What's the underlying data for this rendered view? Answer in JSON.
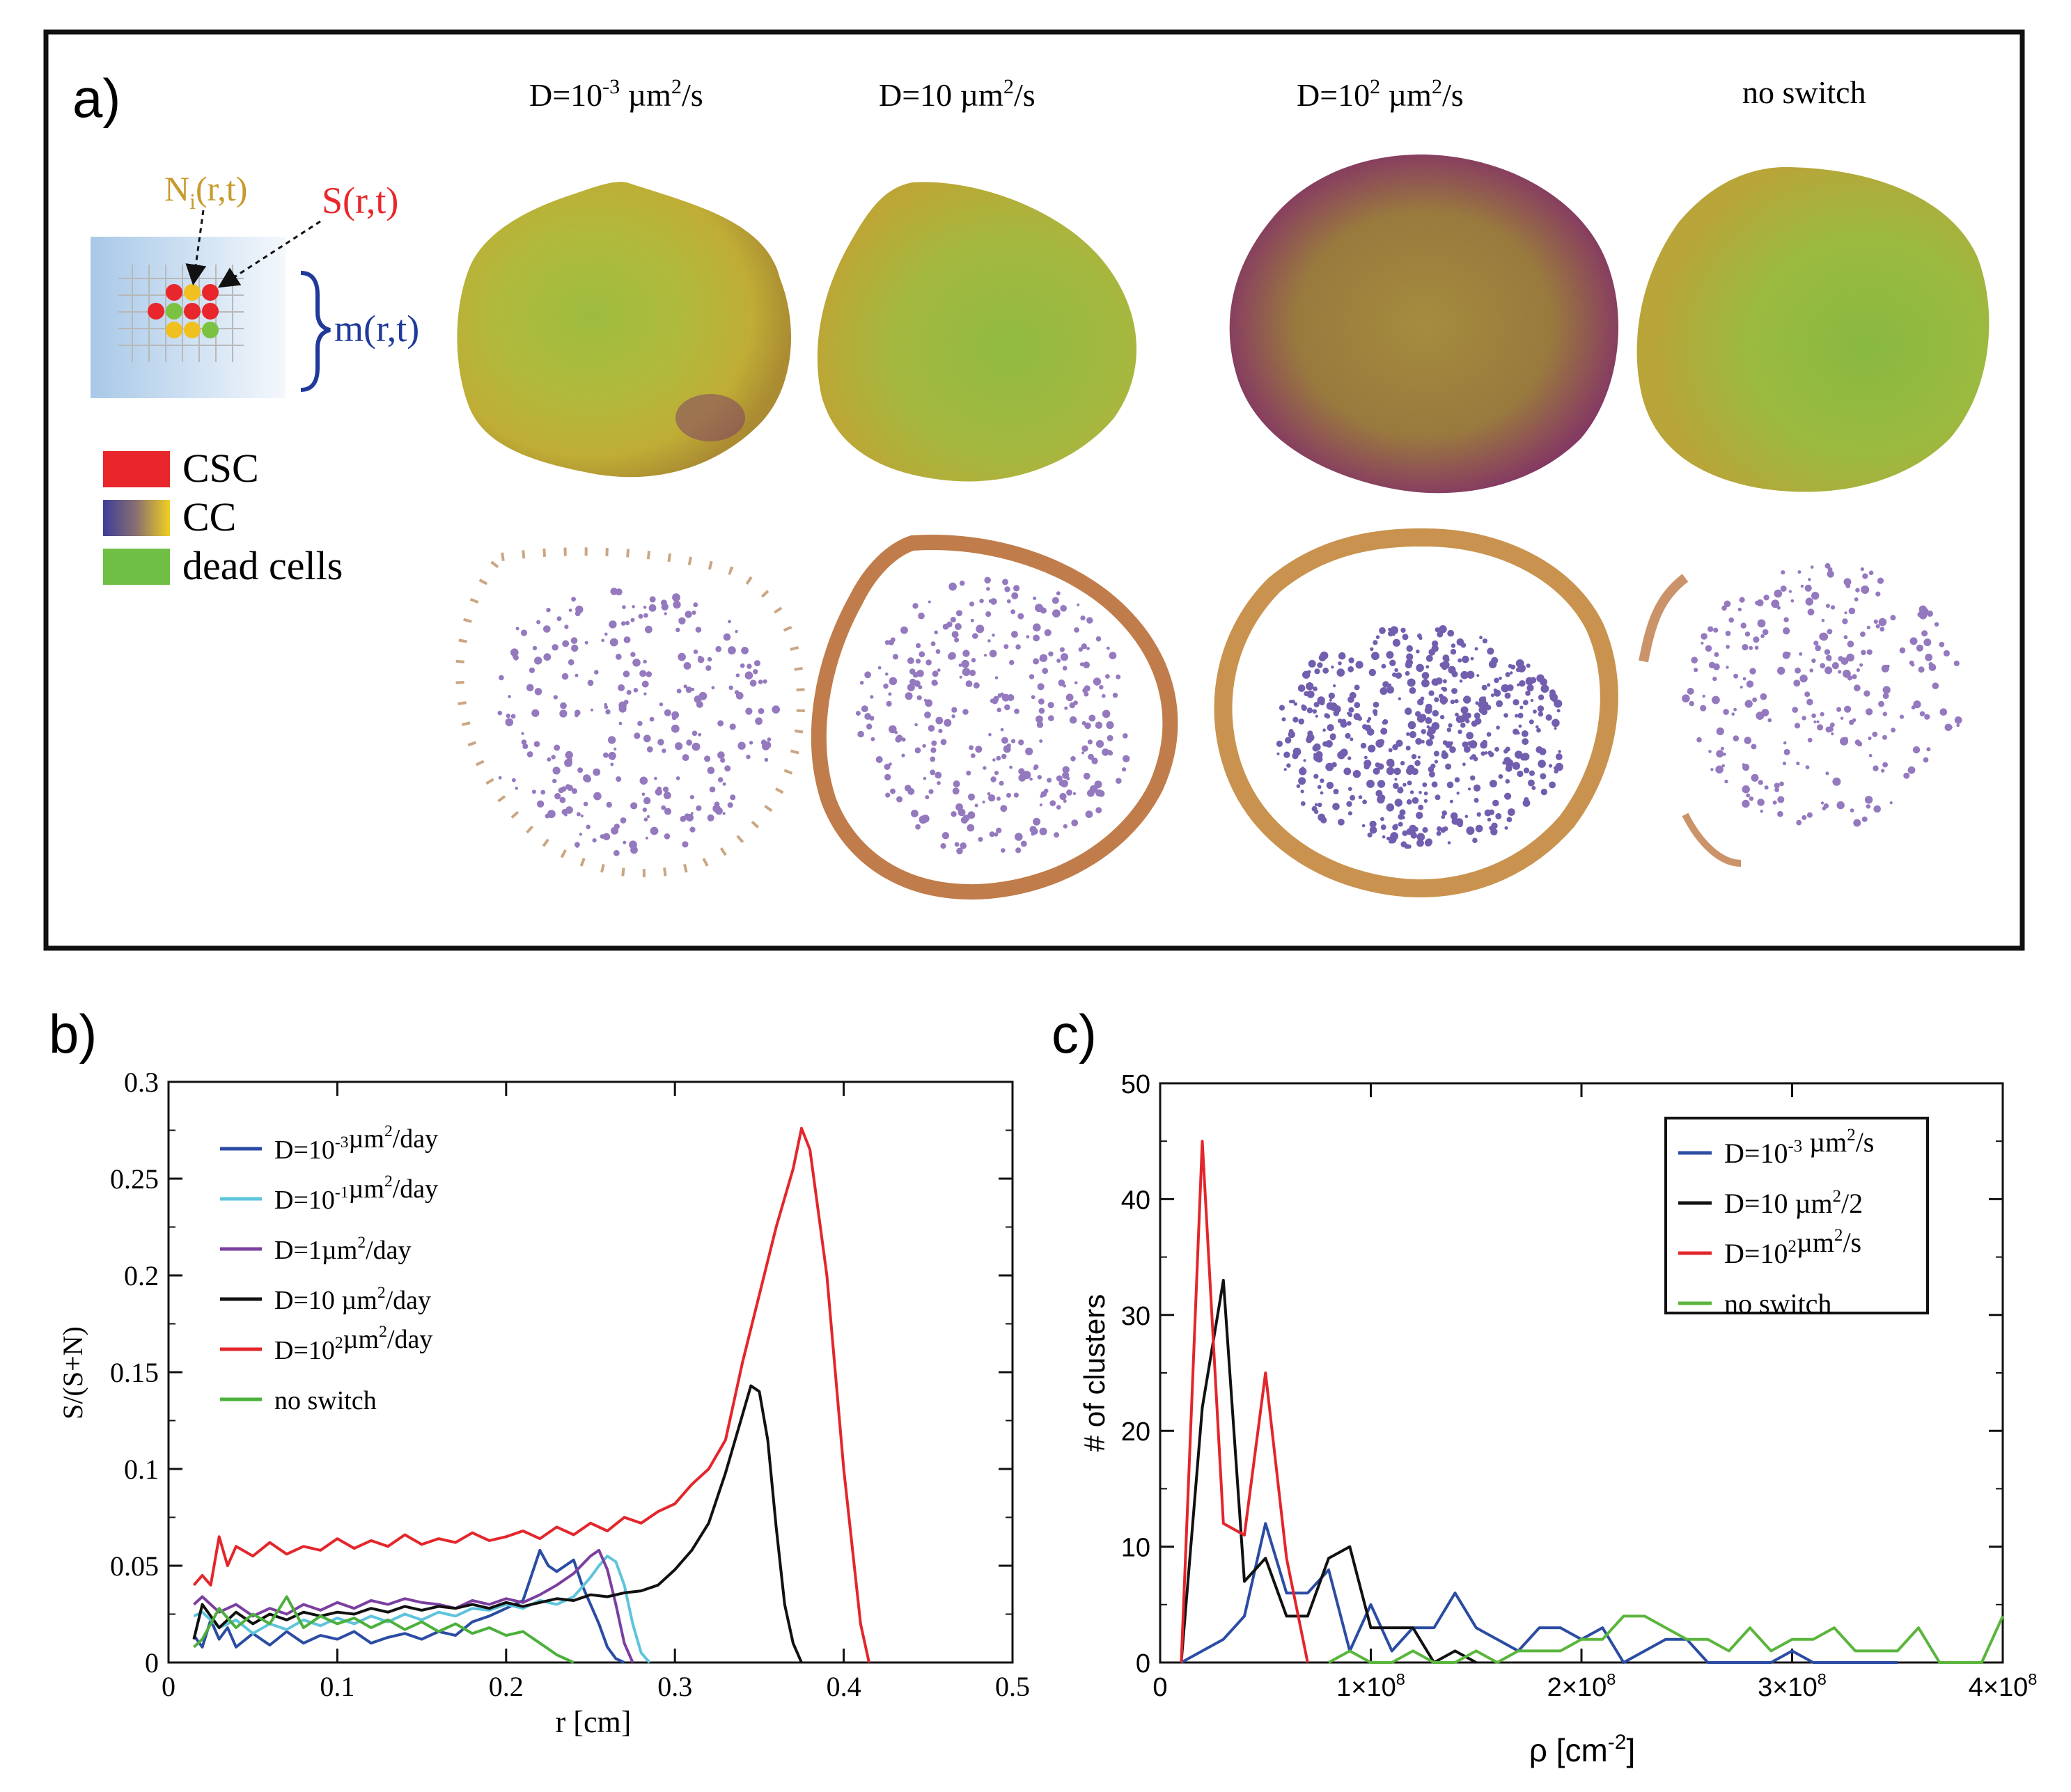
{
  "panel_a": {
    "label": "a)",
    "column_titles": [
      {
        "base": "D=10",
        "sup": "-3",
        "rest": " µm",
        "sup2": "2",
        "tail": "/s"
      },
      {
        "base": "D=10 µm",
        "sup": "2",
        "rest": "/s",
        "sup2": "",
        "tail": ""
      },
      {
        "base": "D=10",
        "sup": "2",
        "rest": " µm",
        "sup2": "2",
        "tail": "/s"
      },
      {
        "base": "no switch",
        "sup": "",
        "rest": "",
        "sup2": "",
        "tail": ""
      }
    ],
    "schematic": {
      "n_label_main": "N",
      "n_label_sub": "i",
      "n_label_rest": "(r,t)",
      "s_label": "S(r,t)",
      "m_label": "m(r,t)"
    },
    "legend": [
      {
        "label": "CSC",
        "color": "#e8262b"
      },
      {
        "label": "CC",
        "color": "gradient"
      },
      {
        "label": "dead cells",
        "color": "#6fbf44"
      }
    ],
    "colors": {
      "csc": "#e8262b",
      "cc_low": "#3d3d9a",
      "cc_high": "#f0d020",
      "dead": "#7cc242",
      "frame": "#111111",
      "schematic_blue": "#1f3a9a",
      "n_label": "#c89a2c"
    }
  },
  "chart_data": [
    {
      "type": "line",
      "panel_label": "b)",
      "title": "",
      "xlabel": "r [cm]",
      "ylabel": "S/(S+N)",
      "xlim": [
        0,
        0.5
      ],
      "ylim": [
        0,
        0.3
      ],
      "xticks": [
        "0",
        "0.1",
        "0.2",
        "0.3",
        "0.4",
        "0.5"
      ],
      "yticks": [
        "0",
        "0.05",
        "0.1",
        "0.15",
        "0.2",
        "0.25",
        "0.3"
      ],
      "legend_position": "top-left",
      "series": [
        {
          "name": "D=10^-3µm^2/day",
          "base": "D=10",
          "sup": "-3",
          "mid": "µm",
          "sup2": "2",
          "tail": "/day",
          "color": "#2b4ca3",
          "x": [
            0.015,
            0.02,
            0.025,
            0.03,
            0.035,
            0.04,
            0.05,
            0.06,
            0.07,
            0.08,
            0.09,
            0.1,
            0.11,
            0.12,
            0.13,
            0.14,
            0.15,
            0.16,
            0.17,
            0.18,
            0.19,
            0.2,
            0.21,
            0.215,
            0.22,
            0.225,
            0.23,
            0.24,
            0.245,
            0.25,
            0.255,
            0.26,
            0.265,
            0.27
          ],
          "y": [
            0.014,
            0.008,
            0.022,
            0.012,
            0.018,
            0.008,
            0.015,
            0.009,
            0.016,
            0.01,
            0.014,
            0.012,
            0.016,
            0.01,
            0.013,
            0.015,
            0.012,
            0.016,
            0.014,
            0.021,
            0.024,
            0.028,
            0.032,
            0.045,
            0.058,
            0.05,
            0.047,
            0.053,
            0.04,
            0.03,
            0.02,
            0.008,
            0.002,
            0.0
          ]
        },
        {
          "name": "D=10^-1µm^2/day",
          "base": "D=10",
          "sup": "-1",
          "mid": "µm",
          "sup2": "2",
          "tail": "/day",
          "color": "#5ec4dc",
          "x": [
            0.015,
            0.02,
            0.03,
            0.04,
            0.05,
            0.06,
            0.07,
            0.08,
            0.09,
            0.1,
            0.11,
            0.12,
            0.13,
            0.14,
            0.15,
            0.16,
            0.17,
            0.18,
            0.19,
            0.2,
            0.21,
            0.22,
            0.23,
            0.24,
            0.25,
            0.255,
            0.26,
            0.265,
            0.27,
            0.275,
            0.28,
            0.285
          ],
          "y": [
            0.024,
            0.026,
            0.018,
            0.022,
            0.015,
            0.02,
            0.017,
            0.022,
            0.019,
            0.023,
            0.02,
            0.024,
            0.021,
            0.025,
            0.022,
            0.026,
            0.024,
            0.028,
            0.027,
            0.03,
            0.028,
            0.032,
            0.03,
            0.034,
            0.044,
            0.05,
            0.055,
            0.052,
            0.04,
            0.02,
            0.005,
            0.0
          ]
        },
        {
          "name": "D=1µm^2/day",
          "base": "D=1µm",
          "sup": "",
          "mid": "",
          "sup2": "2",
          "tail": "/day",
          "color": "#7b3fa0",
          "x": [
            0.015,
            0.02,
            0.03,
            0.04,
            0.05,
            0.06,
            0.07,
            0.08,
            0.09,
            0.1,
            0.11,
            0.12,
            0.13,
            0.14,
            0.15,
            0.16,
            0.17,
            0.18,
            0.19,
            0.2,
            0.21,
            0.22,
            0.23,
            0.24,
            0.25,
            0.255,
            0.26,
            0.265,
            0.27,
            0.275
          ],
          "y": [
            0.03,
            0.034,
            0.026,
            0.03,
            0.024,
            0.028,
            0.025,
            0.03,
            0.027,
            0.031,
            0.028,
            0.032,
            0.03,
            0.033,
            0.031,
            0.03,
            0.028,
            0.032,
            0.03,
            0.033,
            0.031,
            0.035,
            0.04,
            0.046,
            0.055,
            0.058,
            0.048,
            0.03,
            0.01,
            0.0
          ]
        },
        {
          "name": "D=10 µm^2/day",
          "base": "D=10 µm",
          "sup": "",
          "mid": "",
          "sup2": "2",
          "tail": "/day",
          "color": "#111111",
          "x": [
            0.015,
            0.02,
            0.03,
            0.04,
            0.05,
            0.06,
            0.07,
            0.08,
            0.09,
            0.1,
            0.11,
            0.12,
            0.13,
            0.14,
            0.15,
            0.16,
            0.17,
            0.18,
            0.19,
            0.2,
            0.21,
            0.22,
            0.23,
            0.24,
            0.25,
            0.26,
            0.27,
            0.28,
            0.29,
            0.3,
            0.31,
            0.32,
            0.33,
            0.34,
            0.345,
            0.35,
            0.355,
            0.36,
            0.365,
            0.37,
            0.375
          ],
          "y": [
            0.012,
            0.03,
            0.018,
            0.026,
            0.02,
            0.025,
            0.022,
            0.026,
            0.024,
            0.026,
            0.025,
            0.028,
            0.026,
            0.029,
            0.027,
            0.029,
            0.028,
            0.03,
            0.028,
            0.031,
            0.029,
            0.031,
            0.033,
            0.032,
            0.035,
            0.034,
            0.036,
            0.037,
            0.04,
            0.048,
            0.058,
            0.072,
            0.098,
            0.128,
            0.143,
            0.14,
            0.115,
            0.07,
            0.03,
            0.01,
            0.0
          ]
        },
        {
          "name": "D=10^2µm^2/day",
          "base": "D=10",
          "sup": "2",
          "mid": "µm",
          "sup2": "2",
          "tail": "/day",
          "color": "#e3262b",
          "x": [
            0.015,
            0.02,
            0.025,
            0.03,
            0.035,
            0.04,
            0.05,
            0.06,
            0.07,
            0.08,
            0.09,
            0.1,
            0.11,
            0.12,
            0.13,
            0.14,
            0.15,
            0.16,
            0.17,
            0.18,
            0.19,
            0.2,
            0.21,
            0.22,
            0.23,
            0.24,
            0.25,
            0.26,
            0.27,
            0.28,
            0.29,
            0.3,
            0.31,
            0.32,
            0.33,
            0.34,
            0.35,
            0.36,
            0.37,
            0.375,
            0.38,
            0.39,
            0.4,
            0.41,
            0.415
          ],
          "y": [
            0.04,
            0.045,
            0.04,
            0.065,
            0.05,
            0.06,
            0.055,
            0.062,
            0.056,
            0.06,
            0.058,
            0.064,
            0.059,
            0.063,
            0.06,
            0.066,
            0.061,
            0.064,
            0.062,
            0.067,
            0.063,
            0.065,
            0.068,
            0.064,
            0.07,
            0.066,
            0.072,
            0.068,
            0.075,
            0.072,
            0.078,
            0.082,
            0.092,
            0.1,
            0.115,
            0.155,
            0.19,
            0.225,
            0.255,
            0.276,
            0.265,
            0.2,
            0.1,
            0.02,
            0.0
          ]
        },
        {
          "name": "no switch",
          "base": "no switch",
          "sup": "",
          "mid": "",
          "sup2": "",
          "tail": "",
          "color": "#4caf3c",
          "x": [
            0.015,
            0.02,
            0.03,
            0.04,
            0.05,
            0.06,
            0.07,
            0.08,
            0.09,
            0.1,
            0.11,
            0.12,
            0.13,
            0.14,
            0.15,
            0.16,
            0.17,
            0.18,
            0.19,
            0.2,
            0.21,
            0.22,
            0.23,
            0.24
          ],
          "y": [
            0.008,
            0.012,
            0.028,
            0.018,
            0.025,
            0.02,
            0.034,
            0.018,
            0.024,
            0.02,
            0.023,
            0.018,
            0.022,
            0.017,
            0.021,
            0.016,
            0.02,
            0.015,
            0.018,
            0.014,
            0.016,
            0.01,
            0.004,
            0.0
          ]
        }
      ]
    },
    {
      "type": "line",
      "panel_label": "c)",
      "title": "",
      "xlabel": "ρ [cm^-2]",
      "xlabel_base": "ρ [cm",
      "xlabel_sup": "-2",
      "xlabel_tail": "]",
      "ylabel": "# of clusters",
      "xlim": [
        0,
        400000000
      ],
      "ylim": [
        0,
        50
      ],
      "xticks": [
        {
          "label": "0",
          "value": 0
        },
        {
          "label": "1×10^8",
          "value": 100000000
        },
        {
          "label": "2×10^8",
          "value": 200000000
        },
        {
          "label": "3×10^8",
          "value": 300000000
        },
        {
          "label": "4×10^8",
          "value": 400000000
        }
      ],
      "yticks": [
        "0",
        "10",
        "20",
        "30",
        "40",
        "50"
      ],
      "legend_position": "top-right",
      "series": [
        {
          "name": "D=10^-3 µm^2/s",
          "base": "D=10",
          "sup": "-3",
          "mid": " µm",
          "sup2": "2",
          "tail": "/s",
          "color": "#2b4ca3",
          "x": [
            10000000,
            20000000,
            30000000,
            40000000,
            50000000,
            60000000,
            70000000,
            80000000,
            90000000,
            100000000,
            110000000,
            120000000,
            130000000,
            140000000,
            150000000,
            160000000,
            170000000,
            180000000,
            190000000,
            200000000,
            210000000,
            220000000,
            230000000,
            240000000,
            250000000,
            260000000,
            270000000,
            280000000,
            290000000,
            300000000,
            310000000,
            320000000,
            330000000,
            340000000,
            350000000
          ],
          "y": [
            0,
            1,
            2,
            4,
            12,
            6,
            6,
            8,
            1,
            5,
            1,
            3,
            3,
            6,
            3,
            2,
            1,
            3,
            3,
            2,
            3,
            0,
            1,
            2,
            2,
            0,
            0,
            0,
            0,
            1,
            0,
            0,
            0,
            0,
            0
          ]
        },
        {
          "name": "D=10 µm^2/2",
          "base": "D=10 µm",
          "sup": "",
          "mid": "",
          "sup2": "2",
          "tail": "/2",
          "color": "#111111",
          "x": [
            10000000,
            20000000,
            30000000,
            40000000,
            50000000,
            60000000,
            70000000,
            80000000,
            90000000,
            100000000,
            110000000,
            120000000,
            130000000,
            140000000,
            150000000
          ],
          "y": [
            0,
            22,
            33,
            7,
            9,
            4,
            4,
            9,
            10,
            3,
            3,
            3,
            0,
            1,
            0
          ]
        },
        {
          "name": "D=10^2µm^2/s",
          "base": "D=10",
          "sup": "2",
          "mid": "µm",
          "sup2": "2",
          "tail": "/s",
          "color": "#e3262b",
          "x": [
            10000000,
            20000000,
            30000000,
            40000000,
            50000000,
            60000000,
            70000000
          ],
          "y": [
            0,
            45,
            12,
            11,
            25,
            9,
            0
          ]
        },
        {
          "name": "no switch",
          "base": "no switch",
          "sup": "",
          "mid": "",
          "sup2": "",
          "tail": "",
          "color": "#5ab53c",
          "x": [
            80000000,
            90000000,
            100000000,
            110000000,
            120000000,
            130000000,
            140000000,
            150000000,
            160000000,
            170000000,
            180000000,
            190000000,
            200000000,
            210000000,
            220000000,
            230000000,
            240000000,
            250000000,
            260000000,
            270000000,
            280000000,
            290000000,
            300000000,
            310000000,
            320000000,
            330000000,
            340000000,
            350000000,
            360000000,
            370000000,
            380000000,
            390000000,
            400000000
          ],
          "y": [
            0,
            1,
            0,
            0,
            1,
            0,
            0,
            1,
            0,
            1,
            1,
            1,
            2,
            2,
            4,
            4,
            3,
            2,
            2,
            1,
            3,
            1,
            2,
            2,
            3,
            1,
            1,
            1,
            3,
            0,
            0,
            0,
            4
          ]
        }
      ]
    }
  ]
}
